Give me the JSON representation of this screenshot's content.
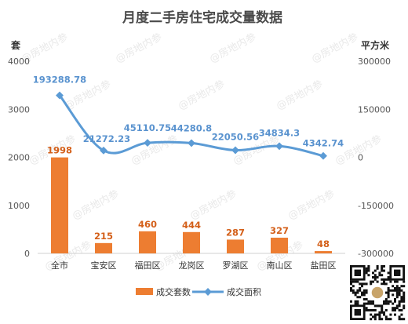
{
  "chart_data": {
    "type": "bar+line",
    "title": "月度二手房住宅成交量数据",
    "categories": [
      "全市",
      "宝安区",
      "福田区",
      "龙岗区",
      "罗湖区",
      "南山区",
      "盐田区"
    ],
    "series": [
      {
        "name": "成交套数",
        "type": "bar",
        "axis": "left",
        "color": "#ed7d31",
        "values": [
          1998,
          215,
          460,
          444,
          287,
          327,
          48
        ],
        "labels": [
          "1998",
          "215",
          "460",
          "444",
          "287",
          "327",
          "48"
        ]
      },
      {
        "name": "成交面积",
        "type": "line",
        "axis": "right",
        "color": "#5b9bd5",
        "values": [
          193288.78,
          21272.23,
          45110.75,
          44280.8,
          22050.56,
          34834.3,
          4342.74
        ],
        "labels": [
          "193288.78",
          "21272.23",
          "45110.75",
          "44280.8",
          "22050.56",
          "34834.3",
          "4342.74"
        ]
      }
    ],
    "y_left": {
      "unit": "套",
      "ylim": [
        0,
        4000
      ],
      "ticks": [
        "0",
        "1000",
        "2000",
        "3000",
        "4000"
      ]
    },
    "y_right": {
      "unit": "平方米",
      "ylim": [
        -300000,
        300000
      ],
      "ticks": [
        "-300000",
        "-150000",
        "0",
        "150000",
        "300000"
      ]
    },
    "grid": false,
    "legend": "bottom"
  },
  "watermark_text": "@房地内参"
}
